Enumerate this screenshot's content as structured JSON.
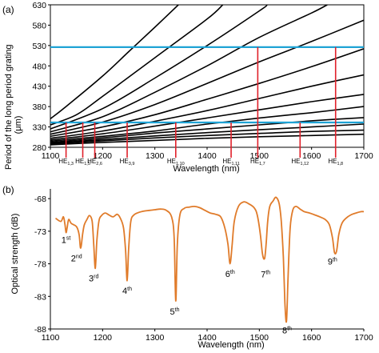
{
  "chart_data": [
    {
      "type": "line",
      "panel_label": "(a)",
      "xlabel": "Wavelength  (nm)",
      "ylabel_line1": "Period of the long period grating",
      "ylabel_line2": "(μm)",
      "xlim": [
        1100,
        1700
      ],
      "ylim": [
        280,
        630
      ],
      "xticks": [
        1100,
        1200,
        1300,
        1400,
        1500,
        1600,
        1700
      ],
      "yticks": [
        280,
        330,
        380,
        430,
        480,
        530,
        580,
        630
      ],
      "grid": false,
      "curves_color": "#000000",
      "curves": [
        [
          [
            1100,
            350
          ],
          [
            1130,
            380
          ],
          [
            1200,
            455
          ],
          [
            1250,
            515
          ],
          [
            1300,
            575
          ],
          [
            1345,
            630
          ]
        ],
        [
          [
            1100,
            335
          ],
          [
            1150,
            360
          ],
          [
            1200,
            405
          ],
          [
            1300,
            500
          ],
          [
            1400,
            595
          ],
          [
            1430,
            630
          ]
        ],
        [
          [
            1100,
            325
          ],
          [
            1200,
            375
          ],
          [
            1300,
            450
          ],
          [
            1400,
            530
          ],
          [
            1500,
            615
          ],
          [
            1515,
            630
          ]
        ],
        [
          [
            1100,
            318
          ],
          [
            1200,
            355
          ],
          [
            1300,
            415
          ],
          [
            1400,
            480
          ],
          [
            1500,
            550
          ],
          [
            1600,
            610
          ],
          [
            1630,
            630
          ]
        ],
        [
          [
            1100,
            312
          ],
          [
            1200,
            342
          ],
          [
            1300,
            385
          ],
          [
            1400,
            437
          ],
          [
            1500,
            490
          ],
          [
            1600,
            540
          ],
          [
            1700,
            592
          ]
        ],
        [
          [
            1100,
            307
          ],
          [
            1200,
            330
          ],
          [
            1300,
            360
          ],
          [
            1400,
            398
          ],
          [
            1500,
            437
          ],
          [
            1600,
            478
          ],
          [
            1700,
            522
          ]
        ],
        [
          [
            1100,
            302
          ],
          [
            1200,
            320
          ],
          [
            1300,
            344
          ],
          [
            1400,
            370
          ],
          [
            1500,
            400
          ],
          [
            1600,
            430
          ],
          [
            1700,
            458
          ]
        ],
        [
          [
            1100,
            298
          ],
          [
            1200,
            313
          ],
          [
            1300,
            332
          ],
          [
            1400,
            352
          ],
          [
            1500,
            372
          ],
          [
            1600,
            392
          ],
          [
            1700,
            410
          ]
        ],
        [
          [
            1100,
            295
          ],
          [
            1200,
            307
          ],
          [
            1300,
            320
          ],
          [
            1400,
            337
          ],
          [
            1500,
            352
          ],
          [
            1600,
            365
          ],
          [
            1700,
            380
          ]
        ],
        [
          [
            1100,
            292
          ],
          [
            1200,
            303
          ],
          [
            1300,
            315
          ],
          [
            1400,
            325
          ],
          [
            1500,
            335
          ],
          [
            1600,
            345
          ],
          [
            1700,
            353
          ]
        ],
        [
          [
            1100,
            290
          ],
          [
            1200,
            299
          ],
          [
            1300,
            308
          ],
          [
            1400,
            316
          ],
          [
            1500,
            323
          ],
          [
            1600,
            330
          ],
          [
            1700,
            337
          ]
        ],
        [
          [
            1100,
            288
          ],
          [
            1200,
            296
          ],
          [
            1300,
            303
          ],
          [
            1400,
            309
          ],
          [
            1500,
            314
          ],
          [
            1600,
            319
          ],
          [
            1700,
            322
          ]
        ],
        [
          [
            1100,
            286
          ],
          [
            1200,
            292
          ],
          [
            1300,
            297
          ],
          [
            1400,
            302
          ],
          [
            1500,
            306
          ],
          [
            1600,
            309
          ],
          [
            1700,
            312
          ]
        ]
      ],
      "hlines": [
        {
          "y": 526,
          "color": "#1fa3d5"
        },
        {
          "y": 341,
          "color": "#1fa3d5"
        }
      ],
      "vlines_color": "#e0202a",
      "vlines": [
        {
          "x": 1130,
          "y_top": 341,
          "mode": "HE",
          "sub": "1,3"
        },
        {
          "x": 1162,
          "y_top": 341,
          "mode": "HE",
          "sub": "1,5"
        },
        {
          "x": 1185,
          "y_top": 341,
          "mode": "HE",
          "sub": "2,6"
        },
        {
          "x": 1247,
          "y_top": 341,
          "mode": "HE",
          "sub": "3,9"
        },
        {
          "x": 1340,
          "y_top": 341,
          "mode": "HE",
          "sub": "1,10"
        },
        {
          "x": 1446,
          "y_top": 341,
          "mode": "HE",
          "sub": "1,11"
        },
        {
          "x": 1497,
          "y_top": 526,
          "mode": "HE",
          "sub": "1,7"
        },
        {
          "x": 1578,
          "y_top": 341,
          "mode": "HE",
          "sub": "1,12"
        },
        {
          "x": 1646,
          "y_top": 526,
          "mode": "HE",
          "sub": "1,8"
        }
      ]
    },
    {
      "type": "line",
      "panel_label": "(b)",
      "xlabel": "Wavelength    (nm)",
      "ylabel": "Optical strength  (dB)",
      "xlim": [
        1100,
        1700
      ],
      "ylim": [
        -88,
        -67
      ],
      "xticks": [
        1100,
        1200,
        1300,
        1400,
        1500,
        1600,
        1700
      ],
      "yticks": [
        -68,
        -73,
        -78,
        -83,
        -88
      ],
      "grid": false,
      "series_color": "#e07b2a",
      "x": [
        1110,
        1120,
        1125,
        1128,
        1130,
        1132,
        1135,
        1140,
        1150,
        1155,
        1158,
        1162,
        1165,
        1170,
        1175,
        1180,
        1183,
        1186,
        1189,
        1193,
        1198,
        1205,
        1212,
        1220,
        1228,
        1234,
        1240,
        1244,
        1247,
        1250,
        1254,
        1260,
        1270,
        1280,
        1290,
        1300,
        1312,
        1322,
        1332,
        1337,
        1340,
        1343,
        1348,
        1356,
        1366,
        1376,
        1386,
        1396,
        1406,
        1416,
        1426,
        1434,
        1440,
        1444,
        1448,
        1452,
        1460,
        1470,
        1480,
        1490,
        1496,
        1502,
        1506,
        1510,
        1513,
        1516,
        1520,
        1526,
        1532,
        1538,
        1542,
        1546,
        1549,
        1552,
        1555,
        1559,
        1564,
        1570,
        1578,
        1586,
        1596,
        1606,
        1616,
        1626,
        1634,
        1640,
        1644,
        1648,
        1652,
        1658,
        1666,
        1675,
        1685,
        1695,
        1700
      ],
      "y": [
        -71,
        -71.5,
        -70.8,
        -72,
        -73.2,
        -72.5,
        -71.2,
        -71.8,
        -72.3,
        -73.5,
        -75.6,
        -73.3,
        -72,
        -71.2,
        -70.6,
        -71.5,
        -75,
        -78.7,
        -74.5,
        -71.4,
        -70.6,
        -70.2,
        -70.5,
        -70.8,
        -70.4,
        -71,
        -72.5,
        -76,
        -80.6,
        -75.5,
        -71.5,
        -70.5,
        -70.1,
        -69.9,
        -69.8,
        -69.7,
        -69.6,
        -69.8,
        -70.8,
        -74,
        -83.7,
        -75,
        -70.5,
        -69.5,
        -69.3,
        -69.2,
        -69.4,
        -69.8,
        -70.2,
        -70.4,
        -70.8,
        -72.5,
        -75,
        -78,
        -75,
        -71.5,
        -69.2,
        -68.5,
        -68.8,
        -69.4,
        -70.5,
        -73.5,
        -76.5,
        -77.2,
        -75,
        -71.5,
        -69.2,
        -68.4,
        -67.8,
        -68.8,
        -71.5,
        -77,
        -84,
        -86.8,
        -80,
        -72.5,
        -69.8,
        -69.2,
        -69.6,
        -70,
        -70.2,
        -70.5,
        -70.8,
        -71.2,
        -72,
        -74,
        -76.3,
        -76,
        -73.6,
        -71.8,
        -71,
        -70.5,
        -70.2,
        -70,
        -70
      ],
      "annotations": [
        {
          "n": "1",
          "sup": "st",
          "x": 1130,
          "y": -74.8
        },
        {
          "n": "2",
          "sup": "nd",
          "x": 1150,
          "y": -77.6
        },
        {
          "n": "3",
          "sup": "rd",
          "x": 1183,
          "y": -80.7
        },
        {
          "n": "4",
          "sup": "th",
          "x": 1247,
          "y": -82.6
        },
        {
          "n": "5",
          "sup": "th",
          "x": 1338,
          "y": -85.8
        },
        {
          "n": "6",
          "sup": "th",
          "x": 1444,
          "y": -80
        },
        {
          "n": "7",
          "sup": "th",
          "x": 1512,
          "y": -80.1
        },
        {
          "n": "8",
          "sup": "th",
          "x": 1553,
          "y": -88.7
        },
        {
          "n": "9",
          "sup": "th",
          "x": 1640,
          "y": -78.1
        }
      ]
    }
  ]
}
